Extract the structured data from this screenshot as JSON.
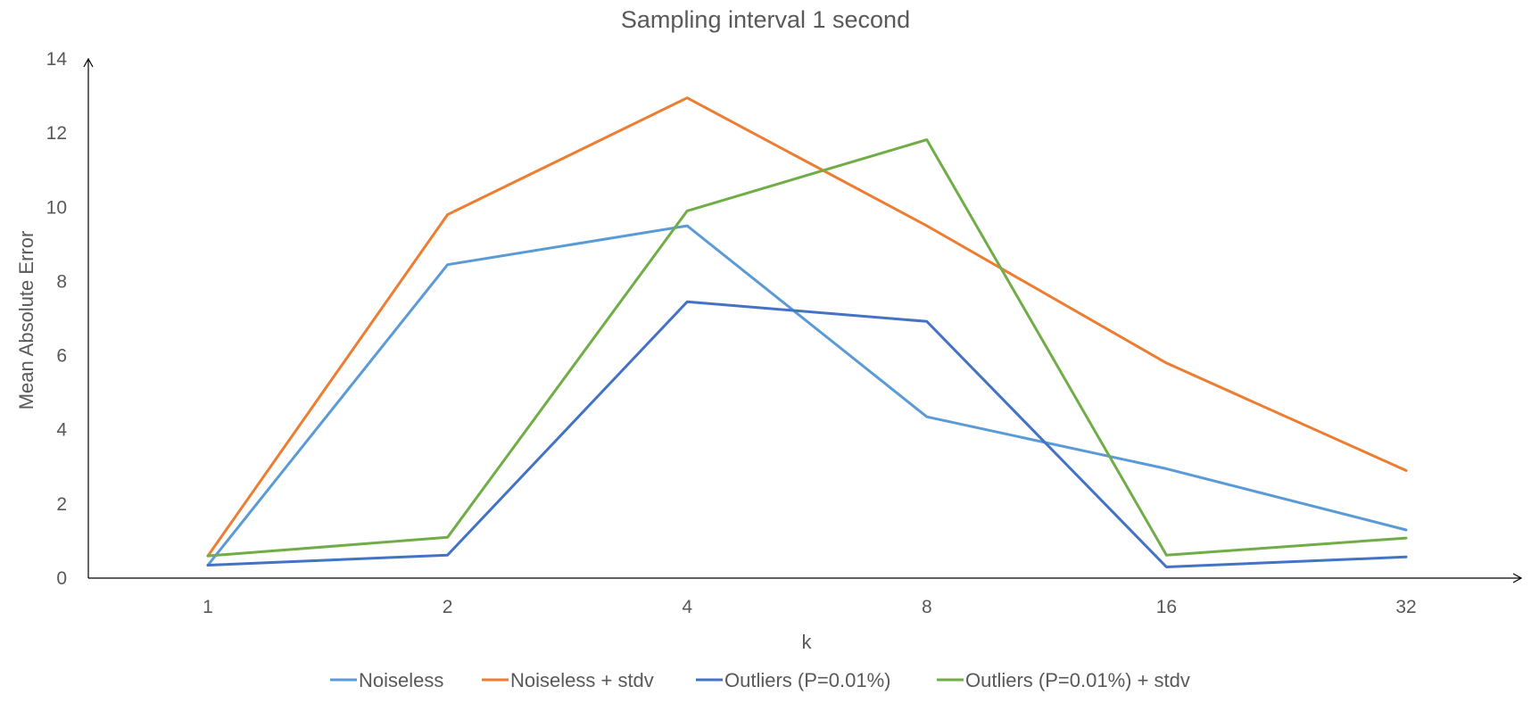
{
  "chart_data": {
    "type": "line",
    "title": "Sampling interval 1 second",
    "xlabel": "k",
    "ylabel": "Mean Absolute Error",
    "categories": [
      "1",
      "2",
      "4",
      "8",
      "16",
      "32"
    ],
    "ylim": [
      0,
      14
    ],
    "yticks": [
      "0",
      "2",
      "4",
      "6",
      "8",
      "10",
      "12",
      "14"
    ],
    "grid": false,
    "legend_position": "bottom",
    "series": [
      {
        "name": "Noiseless",
        "color": "#5B9BD5",
        "values": [
          0.35,
          8.45,
          9.5,
          4.35,
          2.95,
          1.3
        ]
      },
      {
        "name": "Noiseless + stdv",
        "color": "#ED7D31",
        "values": [
          0.6,
          9.8,
          12.95,
          9.5,
          5.8,
          2.9
        ]
      },
      {
        "name": "Outliers (P=0.01%)",
        "color": "#4472C4",
        "values": [
          0.35,
          0.62,
          7.45,
          6.92,
          0.3,
          0.57
        ]
      },
      {
        "name": "Outliers (P=0.01%) + stdv",
        "color": "#70AD47",
        "values": [
          0.6,
          1.1,
          9.9,
          11.82,
          0.62,
          1.08
        ]
      }
    ]
  }
}
